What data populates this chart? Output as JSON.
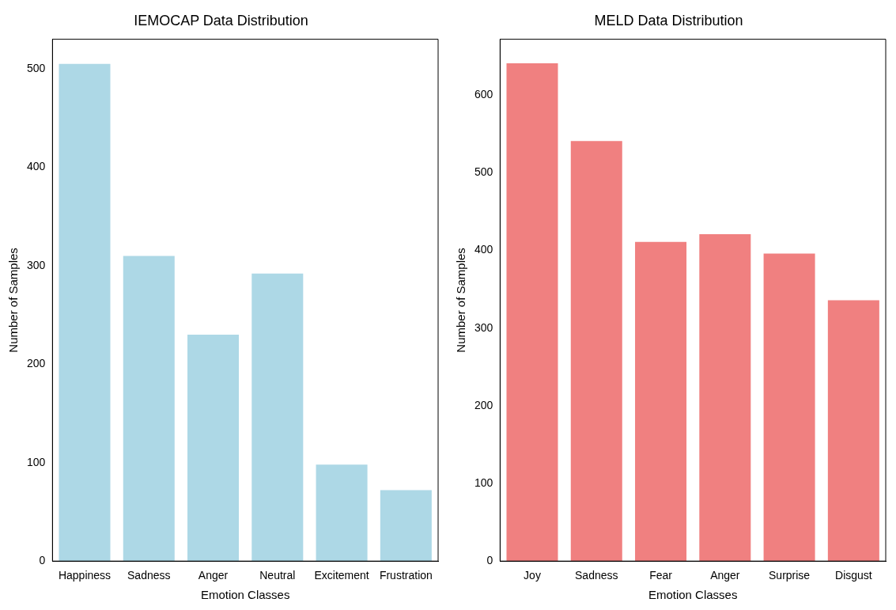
{
  "chart_data": [
    {
      "type": "bar",
      "title": "IEMOCAP Data Distribution",
      "xlabel": "Emotion Classes",
      "ylabel": "Number of Samples",
      "categories": [
        "Happiness",
        "Sadness",
        "Anger",
        "Neutral",
        "Excitement",
        "Frustration"
      ],
      "values": [
        505,
        310,
        230,
        292,
        98,
        72
      ],
      "color": "#add8e6",
      "ylim": [
        0,
        530
      ],
      "yticks": [
        0,
        100,
        200,
        300,
        400,
        500
      ],
      "grid": false
    },
    {
      "type": "bar",
      "title": "MELD Data Distribution",
      "xlabel": "Emotion Classes",
      "ylabel": "Number of Samples",
      "categories": [
        "Joy",
        "Sadness",
        "Fear",
        "Anger",
        "Surprise",
        "Disgust"
      ],
      "values": [
        641,
        541,
        411,
        421,
        396,
        336
      ],
      "color": "#f08080",
      "ylim": [
        0,
        672
      ],
      "yticks": [
        0,
        100,
        200,
        300,
        400,
        500,
        600
      ],
      "grid": false
    }
  ]
}
